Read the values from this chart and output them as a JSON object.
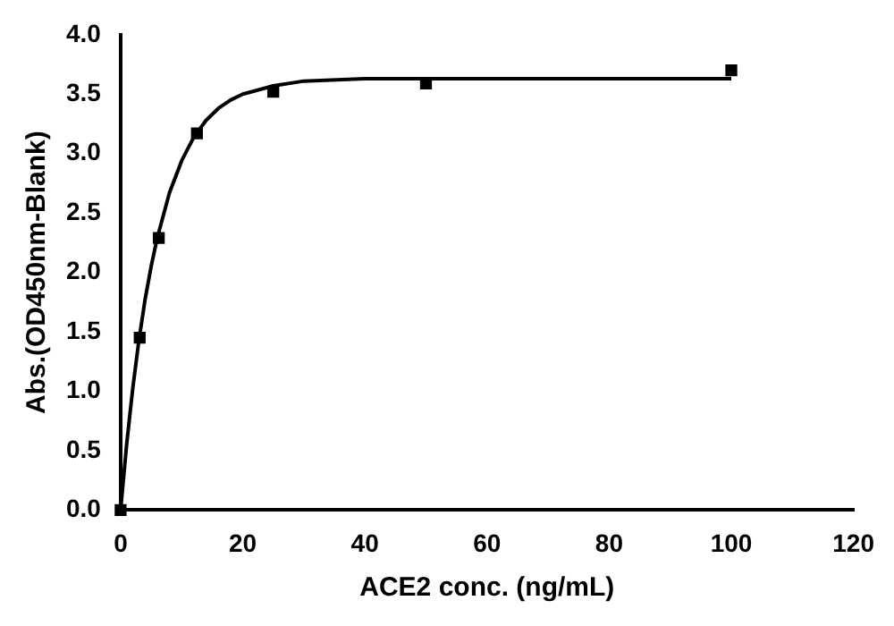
{
  "chart_data": {
    "type": "scatter",
    "xlabel": "ACE2 conc. (ng/mL)",
    "ylabel": "Abs.(OD450nm-Blank)",
    "xlim": [
      0,
      120
    ],
    "xticks": [
      0,
      20,
      40,
      60,
      80,
      100,
      120
    ],
    "ylim": [
      0,
      4
    ],
    "yticks": [
      {
        "value": 0,
        "label": "0.0"
      },
      {
        "value": 0.5,
        "label": "0.5"
      },
      {
        "value": 1,
        "label": "1.0"
      },
      {
        "value": 1.5,
        "label": "1.5"
      },
      {
        "value": 2,
        "label": "2.0"
      },
      {
        "value": 2.5,
        "label": "2.5"
      },
      {
        "value": 3,
        "label": "3.0"
      },
      {
        "value": 3.5,
        "label": "3.5"
      },
      {
        "value": 4,
        "label": "4.0"
      }
    ],
    "grid": false,
    "legend": false,
    "series": [
      {
        "marker": "square",
        "color": "#000000",
        "x": [
          0,
          3.125,
          6.25,
          12.5,
          25,
          50,
          100
        ],
        "values": [
          0,
          1.45,
          2.29,
          3.17,
          3.52,
          3.59,
          3.7
        ]
      },
      {
        "type": "line",
        "marker": "none",
        "line_style": "solid",
        "color": "#000000",
        "x": [
          0,
          1,
          2,
          3,
          4,
          5,
          6,
          8,
          10,
          12,
          14,
          16,
          18,
          20,
          25,
          30,
          40,
          60,
          80,
          100
        ],
        "values": [
          0,
          0.56,
          1.03,
          1.43,
          1.77,
          2.05,
          2.29,
          2.67,
          2.94,
          3.14,
          3.28,
          3.38,
          3.45,
          3.5,
          3.57,
          3.61,
          3.63,
          3.63,
          3.63,
          3.63
        ]
      }
    ]
  }
}
